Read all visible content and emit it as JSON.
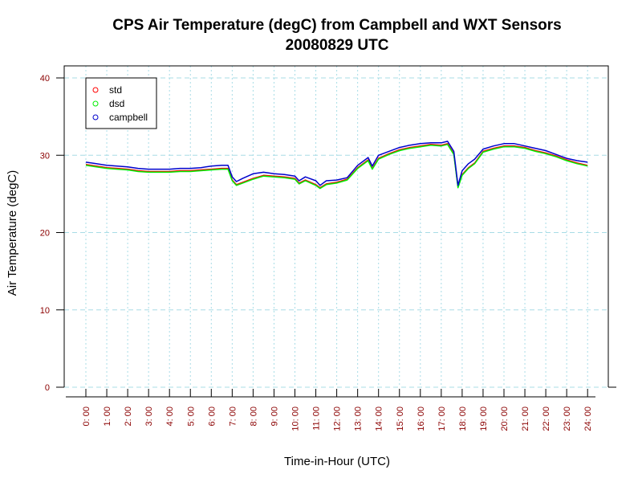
{
  "chart_data": {
    "type": "line",
    "title": "CPS Air Temperature (degC) from Campbell and WXT Sensors",
    "subtitle": "20080829  UTC",
    "xlabel": "Time-in-Hour (UTC)",
    "ylabel": "Air Temperature (degC)",
    "ylim": [
      0,
      40
    ],
    "xlim": [
      0,
      24
    ],
    "yticks": [
      0,
      10,
      20,
      30,
      40
    ],
    "xtick_labels": [
      "0:00",
      "1:00",
      "2:00",
      "3:00",
      "4:00",
      "5:00",
      "6:00",
      "7:00",
      "8:00",
      "9:00",
      "10:00",
      "11:00",
      "12:00",
      "13:00",
      "14:00",
      "15:00",
      "16:00",
      "17:00",
      "18:00",
      "19:00",
      "20:00",
      "21:00",
      "22:00",
      "23:00",
      "24:00"
    ],
    "grid": true,
    "legend_position": "top-left",
    "x": [
      0,
      0.5,
      1,
      1.5,
      2,
      2.5,
      3,
      3.5,
      4,
      4.5,
      5,
      5.5,
      6,
      6.5,
      6.8,
      7,
      7.2,
      7.5,
      8,
      8.5,
      9,
      9.5,
      10,
      10.2,
      10.5,
      11,
      11.2,
      11.5,
      12,
      12.5,
      13,
      13.5,
      13.7,
      14,
      14.5,
      15,
      15.5,
      16,
      16.5,
      17,
      17.3,
      17.6,
      17.8,
      18,
      18.3,
      18.6,
      19,
      19.5,
      20,
      20.5,
      21,
      21.5,
      22,
      22.5,
      23,
      23.5,
      24
    ],
    "series": [
      {
        "name": "std",
        "color": "#ff0000",
        "values": [
          28.8,
          28.6,
          28.4,
          28.3,
          28.2,
          28.0,
          27.9,
          27.9,
          27.9,
          28.0,
          28.0,
          28.1,
          28.2,
          28.3,
          28.3,
          26.8,
          26.2,
          26.5,
          27.0,
          27.4,
          27.3,
          27.2,
          27.0,
          26.4,
          26.8,
          26.2,
          25.8,
          26.3,
          26.5,
          26.9,
          28.4,
          29.4,
          28.3,
          29.6,
          30.2,
          30.7,
          31.0,
          31.2,
          31.4,
          31.3,
          31.5,
          30.2,
          25.9,
          27.5,
          28.4,
          29.0,
          30.5,
          30.9,
          31.2,
          31.2,
          31.0,
          30.6,
          30.3,
          29.9,
          29.4,
          29.0,
          28.7
        ]
      },
      {
        "name": "dsd",
        "color": "#00ee00",
        "values": [
          28.7,
          28.5,
          28.3,
          28.2,
          28.1,
          27.9,
          27.8,
          27.8,
          27.8,
          27.9,
          27.9,
          28.0,
          28.1,
          28.2,
          28.2,
          26.7,
          26.1,
          26.4,
          26.9,
          27.3,
          27.2,
          27.1,
          26.9,
          26.3,
          26.7,
          26.1,
          25.7,
          26.2,
          26.4,
          26.8,
          28.3,
          29.3,
          28.2,
          29.5,
          30.1,
          30.6,
          30.9,
          31.1,
          31.3,
          31.2,
          31.4,
          30.1,
          25.8,
          27.4,
          28.3,
          28.9,
          30.4,
          30.8,
          31.1,
          31.1,
          30.9,
          30.5,
          30.2,
          29.8,
          29.3,
          28.9,
          28.6
        ]
      },
      {
        "name": "campbell",
        "color": "#0000cc",
        "values": [
          29.1,
          28.9,
          28.7,
          28.6,
          28.5,
          28.3,
          28.2,
          28.2,
          28.2,
          28.3,
          28.3,
          28.4,
          28.6,
          28.7,
          28.7,
          27.2,
          26.6,
          27.0,
          27.6,
          27.8,
          27.6,
          27.5,
          27.3,
          26.7,
          27.2,
          26.7,
          26.1,
          26.7,
          26.8,
          27.1,
          28.7,
          29.7,
          28.6,
          30.0,
          30.5,
          31.0,
          31.3,
          31.5,
          31.6,
          31.6,
          31.8,
          30.5,
          26.1,
          28.0,
          28.9,
          29.5,
          30.8,
          31.2,
          31.5,
          31.5,
          31.2,
          30.9,
          30.6,
          30.1,
          29.6,
          29.3,
          29.1
        ]
      }
    ]
  }
}
